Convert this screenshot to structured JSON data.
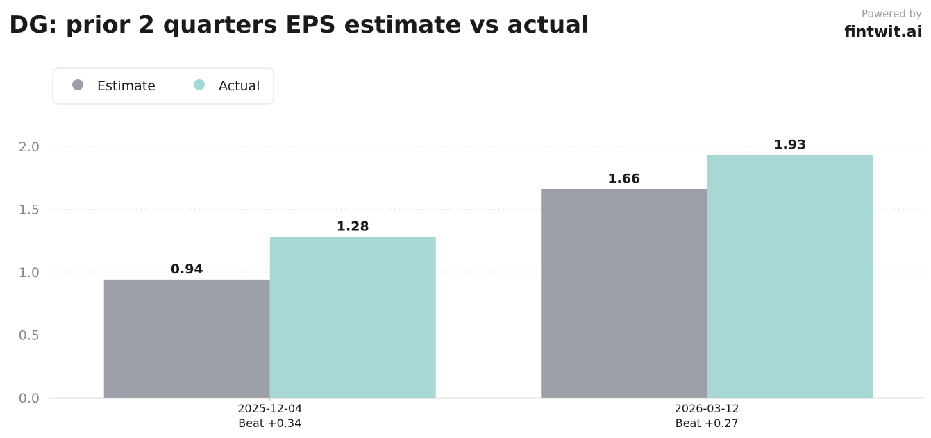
{
  "header": {
    "title": "DG: prior 2 quarters EPS estimate vs actual",
    "powered_by": "Powered by",
    "brand": "fintwit.ai"
  },
  "legend": {
    "placement": "top-left",
    "items": [
      {
        "label": "Estimate",
        "color": "#9c9fa7"
      },
      {
        "label": "Actual",
        "color": "#a8d8d4"
      }
    ]
  },
  "chart_data": {
    "type": "bar",
    "title": "DG: prior 2 quarters EPS estimate vs actual",
    "xlabel": "",
    "ylabel": "",
    "ylim": [
      0,
      2.0
    ],
    "yticks": [
      "0.0",
      "0.5",
      "1.0",
      "1.5",
      "2.0"
    ],
    "grid": "horizontal dotted",
    "categories": [
      "2025-12-04",
      "2026-03-12"
    ],
    "category_sublabels": [
      "Beat +0.34",
      "Beat +0.27"
    ],
    "series": [
      {
        "name": "Estimate",
        "color": "#9c9fa7",
        "values": [
          0.94,
          1.66
        ],
        "labels": [
          "0.94",
          "1.66"
        ]
      },
      {
        "name": "Actual",
        "color": "#a8d8d4",
        "values": [
          1.28,
          1.93
        ],
        "labels": [
          "1.28",
          "1.93"
        ]
      }
    ]
  }
}
